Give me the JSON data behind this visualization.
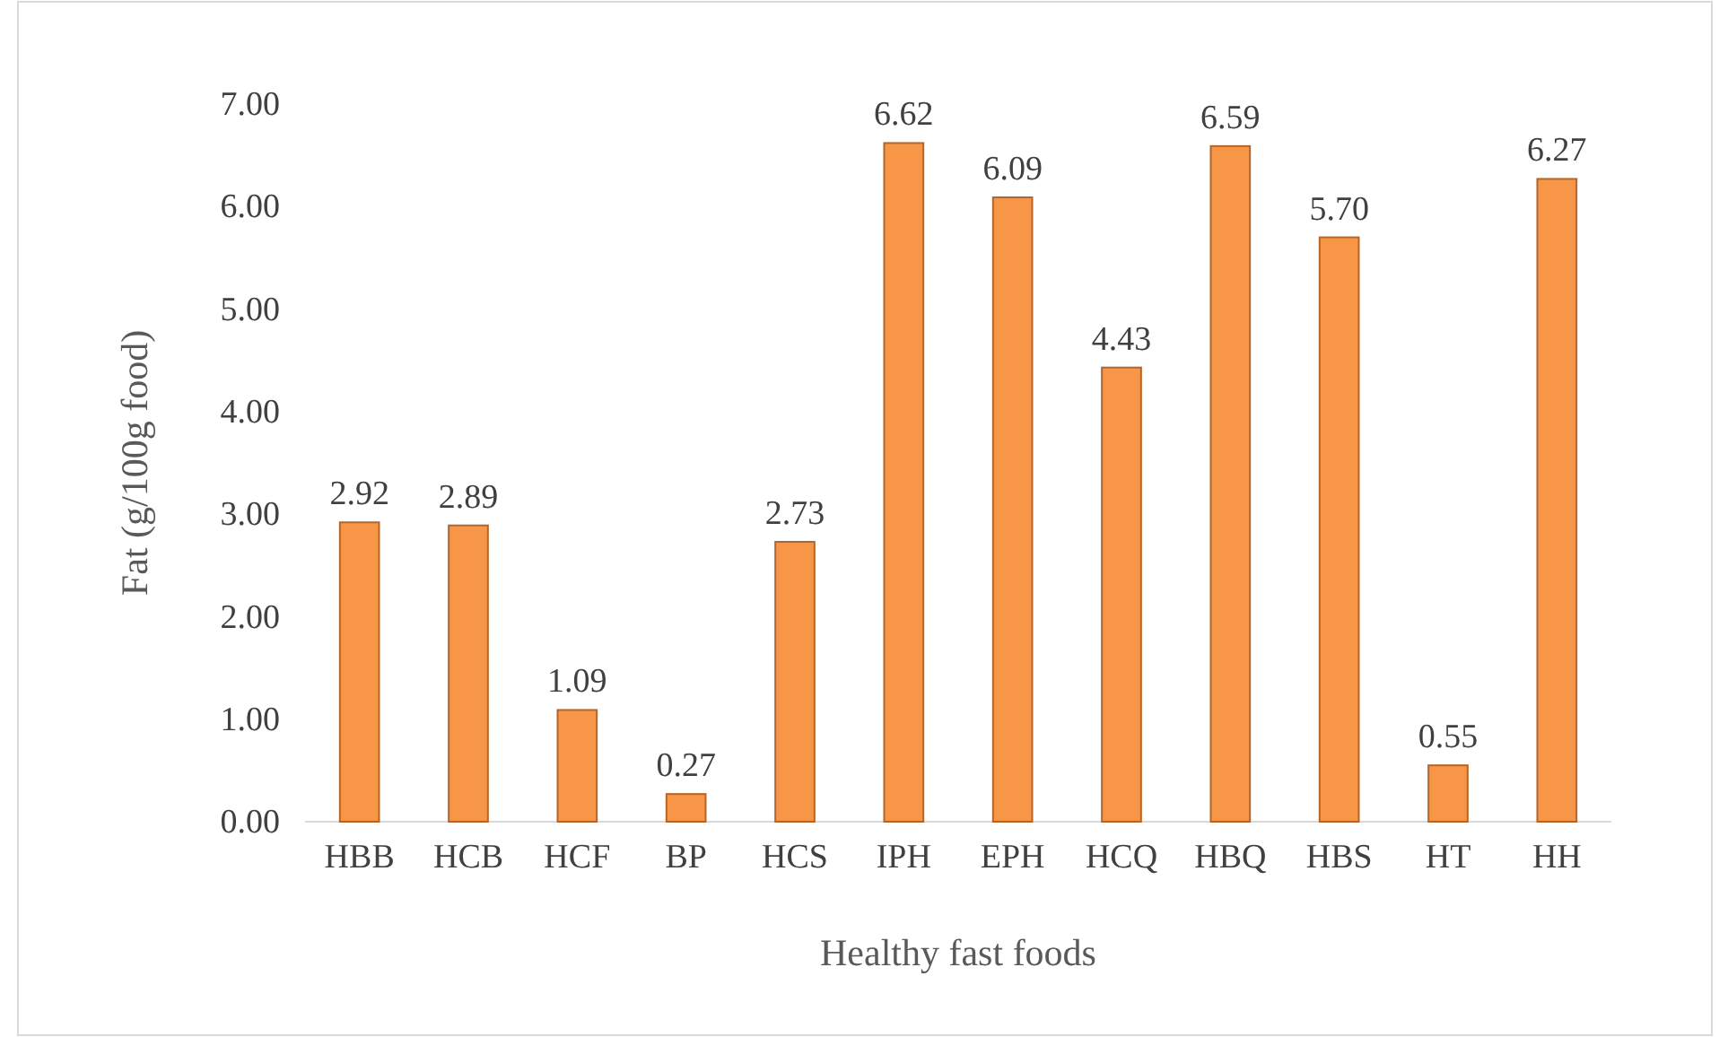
{
  "chart_data": {
    "type": "bar",
    "xlabel": "Healthy fast foods",
    "ylabel": "Fat (g/100g food)",
    "categories": [
      "HBB",
      "HCB",
      "HCF",
      "BP",
      "HCS",
      "IPH",
      "EPH",
      "HCQ",
      "HBQ",
      "HBS",
      "HT",
      "HH"
    ],
    "values": [
      2.92,
      2.89,
      1.09,
      0.27,
      2.73,
      6.62,
      6.09,
      4.43,
      6.59,
      5.7,
      0.55,
      6.27
    ],
    "value_labels": [
      "2.92",
      "2.89",
      "1.09",
      "0.27",
      "2.73",
      "6.62",
      "6.09",
      "4.43",
      "6.59",
      "5.70",
      "0.55",
      "6.27"
    ],
    "color": "#f79646",
    "ylim": [
      0,
      7
    ],
    "yticks": [
      {
        "value": 0,
        "label": "0.00"
      },
      {
        "value": 1,
        "label": "1.00"
      },
      {
        "value": 2,
        "label": "2.00"
      },
      {
        "value": 3,
        "label": "3.00"
      },
      {
        "value": 4,
        "label": "4.00"
      },
      {
        "value": 5,
        "label": "5.00"
      },
      {
        "value": 6,
        "label": "6.00"
      },
      {
        "value": 7,
        "label": "7.00"
      }
    ]
  }
}
